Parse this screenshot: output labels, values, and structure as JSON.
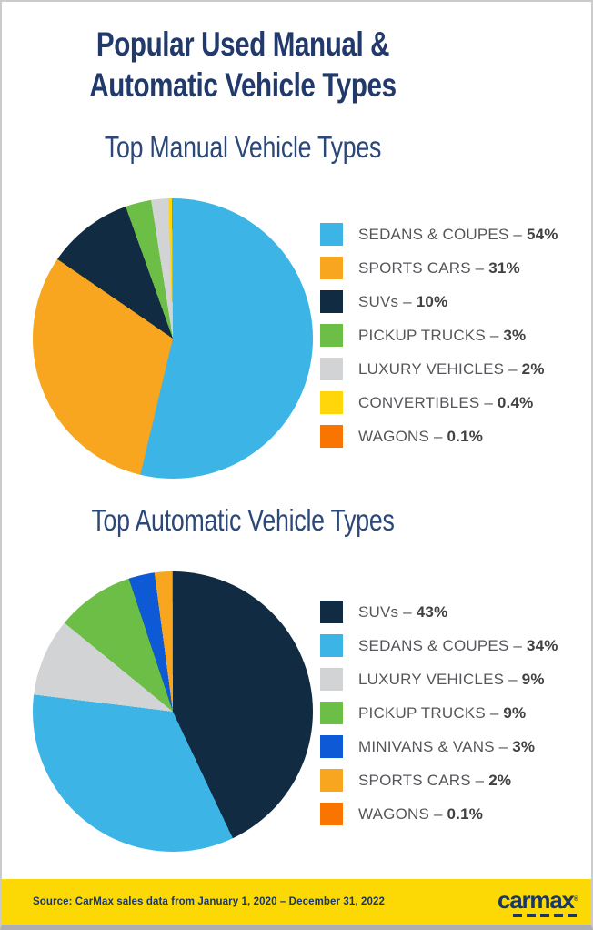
{
  "header": {
    "title_line1": "Popular Used Manual &",
    "title_line2": "Automatic Vehicle Types"
  },
  "chart_data": [
    {
      "type": "pie",
      "title": "Top Manual Vehicle Types",
      "categories": [
        "SEDANS & COUPES",
        "SPORTS CARS",
        "SUVs",
        "PICKUP TRUCKS",
        "LUXURY VEHICLES",
        "CONVERTIBLES",
        "WAGONS"
      ],
      "values": [
        54,
        31,
        10,
        3,
        2,
        0.4,
        0.1
      ],
      "value_labels": [
        "54%",
        "31%",
        "10%",
        "3%",
        "2%",
        "0.4%",
        "0.1%"
      ],
      "colors": [
        "#3CB4E6",
        "#F8A51F",
        "#112B43",
        "#6DBE46",
        "#D1D3D4",
        "#FED609",
        "#F97500"
      ],
      "legend_position": "right",
      "start_angle_deg": 0,
      "direction": "clockwise",
      "separator": " – "
    },
    {
      "type": "pie",
      "title": "Top Automatic Vehicle Types",
      "categories": [
        "SUVs",
        "SEDANS & COUPES",
        "LUXURY VEHICLES",
        "PICKUP TRUCKS",
        "MINIVANS & VANS",
        "SPORTS CARS",
        "WAGONS"
      ],
      "values": [
        43,
        34,
        9,
        9,
        3,
        2,
        0.1
      ],
      "value_labels": [
        "43%",
        "34%",
        "9%",
        "9%",
        "3%",
        "2%",
        "0.1%"
      ],
      "colors": [
        "#112B43",
        "#3CB4E6",
        "#D1D3D4",
        "#6DBE46",
        "#0E5AD6",
        "#F8A51F",
        "#F97500"
      ],
      "legend_position": "right",
      "start_angle_deg": 0,
      "direction": "clockwise",
      "separator": " – "
    }
  ],
  "footer": {
    "source_text": "Source: CarMax sales data from January 1, 2020 – December 31, 2022",
    "logo_text": "carmax",
    "logo_mark": "®",
    "bar_color": "#FCD905"
  },
  "colors": {
    "title_navy": "#21396B",
    "subtitle_navy": "#2B4879",
    "legend_label_gray": "#55565A",
    "legend_value_dark": "#414042",
    "footer_text_navy": "#1A3768",
    "page_background": "#FFFFFF"
  }
}
